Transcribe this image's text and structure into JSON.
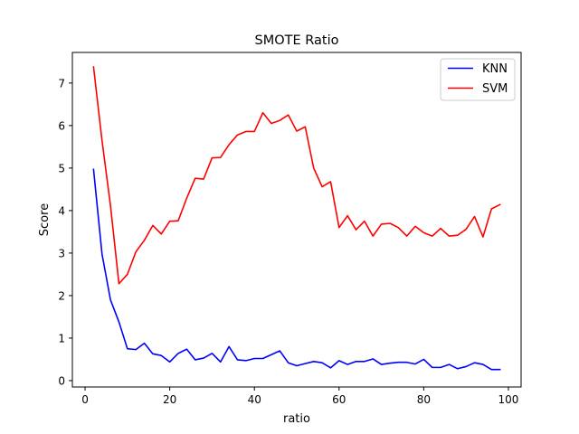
{
  "chart_data": {
    "type": "line",
    "title": "SMOTE Ratio",
    "xlabel": "ratio",
    "ylabel": "Score",
    "xlim": [
      -3,
      103
    ],
    "ylim": [
      -0.15,
      7.72
    ],
    "xticks": [
      0,
      20,
      40,
      60,
      80,
      100
    ],
    "yticks": [
      0,
      1,
      2,
      3,
      4,
      5,
      6,
      7
    ],
    "grid": false,
    "legend_position": "top-right",
    "x": [
      2,
      4,
      6,
      8,
      10,
      12,
      14,
      16,
      18,
      20,
      22,
      24,
      26,
      28,
      30,
      32,
      34,
      36,
      38,
      40,
      42,
      44,
      46,
      48,
      50,
      52,
      54,
      56,
      58,
      60,
      62,
      64,
      66,
      68,
      70,
      72,
      74,
      76,
      78,
      80,
      82,
      84,
      86,
      88,
      90,
      92,
      94,
      96,
      98
    ],
    "series": [
      {
        "name": "KNN",
        "color": "#0000ff",
        "values": [
          4.97,
          2.98,
          1.9,
          1.38,
          0.75,
          0.73,
          0.88,
          0.63,
          0.59,
          0.44,
          0.64,
          0.74,
          0.49,
          0.53,
          0.64,
          0.44,
          0.8,
          0.49,
          0.47,
          0.52,
          0.52,
          0.61,
          0.7,
          0.42,
          0.35,
          0.4,
          0.45,
          0.42,
          0.3,
          0.47,
          0.38,
          0.45,
          0.45,
          0.51,
          0.38,
          0.41,
          0.43,
          0.43,
          0.39,
          0.5,
          0.31,
          0.31,
          0.38,
          0.28,
          0.33,
          0.42,
          0.38,
          0.26,
          0.26
        ]
      },
      {
        "name": "SVM",
        "color": "#ff0000",
        "values": [
          7.38,
          5.65,
          4.12,
          2.28,
          2.5,
          3.03,
          3.3,
          3.65,
          3.45,
          3.75,
          3.76,
          4.29,
          4.76,
          4.74,
          5.24,
          5.25,
          5.55,
          5.78,
          5.86,
          5.86,
          6.3,
          6.05,
          6.12,
          6.25,
          5.87,
          5.97,
          5.0,
          4.56,
          4.68,
          3.6,
          3.88,
          3.55,
          3.75,
          3.4,
          3.68,
          3.7,
          3.6,
          3.4,
          3.63,
          3.48,
          3.4,
          3.58,
          3.4,
          3.42,
          3.56,
          3.86,
          3.38,
          4.04,
          4.14
        ]
      }
    ]
  }
}
